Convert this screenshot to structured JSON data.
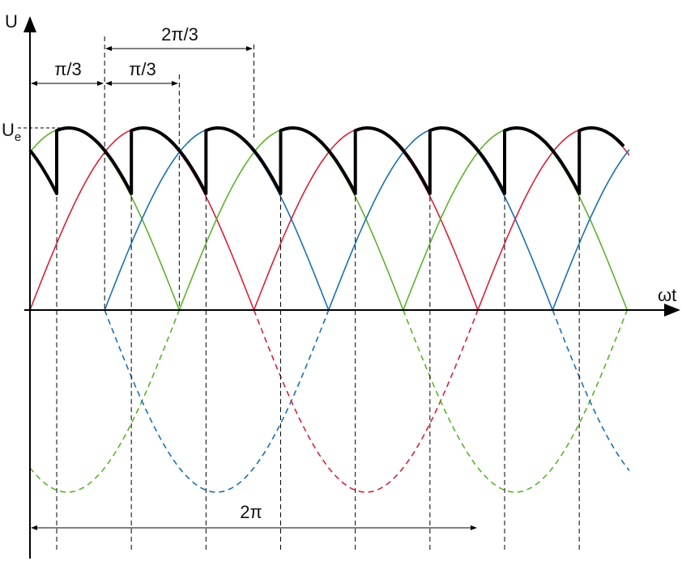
{
  "axes": {
    "y_label": "U",
    "x_label": "ωt"
  },
  "peak_label": {
    "main": "U",
    "subscript": "e"
  },
  "annotations": [
    "π/3",
    "π/3",
    "2π/3",
    "2π"
  ]
}
